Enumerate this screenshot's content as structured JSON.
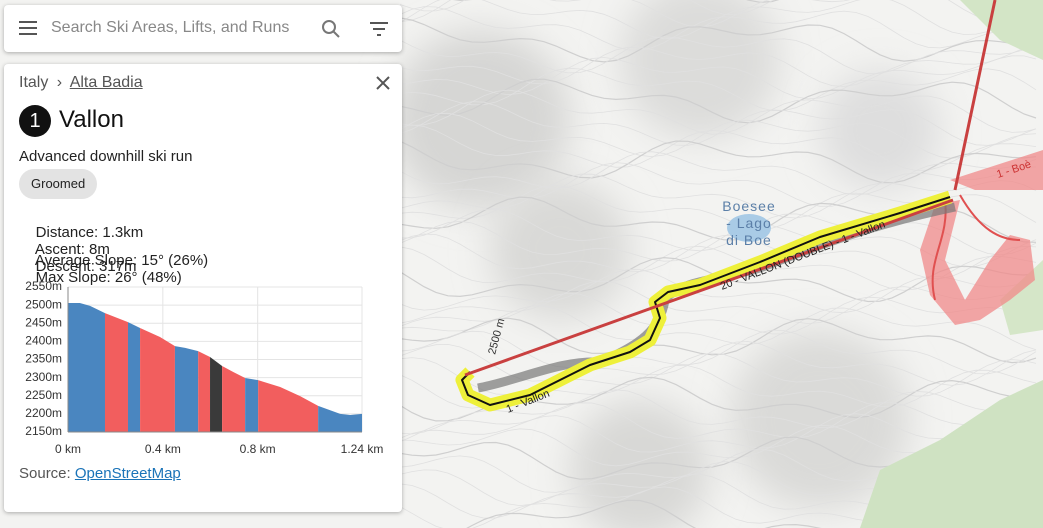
{
  "search": {
    "placeholder": "Search Ski Areas, Lifts, and Runs"
  },
  "panel": {
    "breadcrumb": {
      "country": "Italy",
      "separator": "›",
      "area": "Alta Badia"
    },
    "badge": "1",
    "title": "Vallon",
    "description": "Advanced downhill ski run",
    "chip": "Groomed",
    "stats": [
      [
        "Distance: 1.3km",
        "Ascent: 8m",
        "Descent: 317m"
      ],
      [
        "Average Slope: 15° (26%)",
        "Max Slope: 26° (48%)"
      ]
    ],
    "source": {
      "label": "Source:",
      "link": "OpenStreetMap"
    }
  },
  "map_labels": {
    "lake": [
      "Boesee",
      "- Lago",
      "di Boe"
    ],
    "lift": "2500 m",
    "run_lower": "1 - Vallon",
    "run_upper": "20 - VALLON (DOUBLE) - 1 - Vallon",
    "run_right": "1 - Boè"
  },
  "chart_data": {
    "type": "area",
    "xlim": [
      0,
      1.24
    ],
    "ylim": [
      2150,
      2550
    ],
    "grid": true,
    "xticks": [
      {
        "value": 0,
        "label": "0 km"
      },
      {
        "value": 0.4,
        "label": "0.4 km"
      },
      {
        "value": 0.8,
        "label": "0.8 km"
      },
      {
        "value": 1.24,
        "label": "1.24 km"
      }
    ],
    "yticks": [
      {
        "value": 2150,
        "label": "2150m"
      },
      {
        "value": 2200,
        "label": "2200m"
      },
      {
        "value": 2250,
        "label": "2250m"
      },
      {
        "value": 2300,
        "label": "2300m"
      },
      {
        "value": 2350,
        "label": "2350m"
      },
      {
        "value": 2400,
        "label": "2400m"
      },
      {
        "value": 2450,
        "label": "2450m"
      },
      {
        "value": 2500,
        "label": "2500m"
      },
      {
        "value": 2550,
        "label": "2550m"
      }
    ],
    "series": [
      {
        "color": "#4a86c0",
        "x": [
          0,
          0.05,
          0.093,
          0.156
        ],
        "values": [
          2506,
          2506,
          2498,
          2478
        ]
      },
      {
        "color": "#f25e5e",
        "x": [
          0.156,
          0.253
        ],
        "values": [
          2478,
          2453
        ]
      },
      {
        "color": "#4a86c0",
        "x": [
          0.253,
          0.304
        ],
        "values": [
          2453,
          2437
        ]
      },
      {
        "color": "#f25e5e",
        "x": [
          0.304,
          0.388,
          0.451
        ],
        "values": [
          2437,
          2412,
          2387
        ]
      },
      {
        "color": "#4a86c0",
        "x": [
          0.451,
          0.494,
          0.549
        ],
        "values": [
          2387,
          2382,
          2373
        ]
      },
      {
        "color": "#f25e5e",
        "x": [
          0.549,
          0.599
        ],
        "values": [
          2373,
          2357
        ]
      },
      {
        "color": "#3a3a3a",
        "x": [
          0.599,
          0.65
        ],
        "values": [
          2357,
          2332
        ]
      },
      {
        "color": "#f25e5e",
        "x": [
          0.65,
          0.696,
          0.747
        ],
        "values": [
          2332,
          2316,
          2299
        ]
      },
      {
        "color": "#4a86c0",
        "x": [
          0.747,
          0.802
        ],
        "values": [
          2299,
          2293
        ]
      },
      {
        "color": "#f25e5e",
        "x": [
          0.802,
          0.895,
          0.979,
          1.055
        ],
        "values": [
          2293,
          2274,
          2249,
          2222
        ]
      },
      {
        "color": "#4a86c0",
        "x": [
          1.055,
          1.148,
          1.19,
          1.24
        ],
        "values": [
          2222,
          2200,
          2197,
          2200
        ]
      }
    ]
  }
}
